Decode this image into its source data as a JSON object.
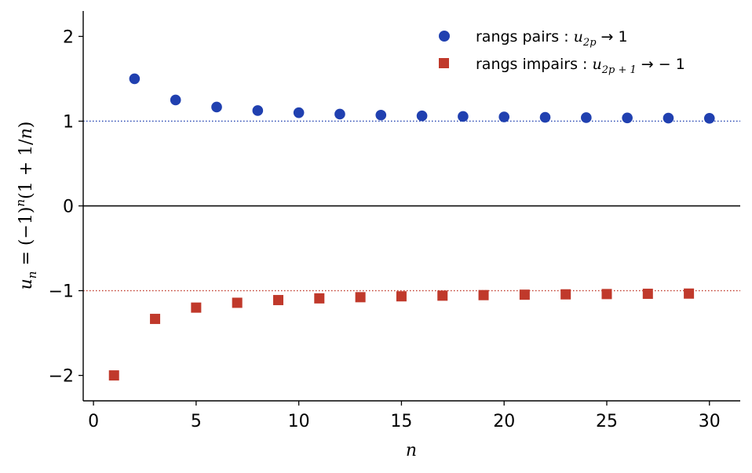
{
  "chart_data": {
    "type": "scatter",
    "title": "",
    "xlabel": "n",
    "ylabel": "u_n = (−1)^n(1 + 1/n)",
    "xlim": [
      -0.5,
      31.5
    ],
    "ylim": [
      -2.3,
      2.3
    ],
    "xticks": [
      0,
      5,
      10,
      15,
      20,
      25,
      30
    ],
    "xtick_labels": [
      "0",
      "5",
      "10",
      "15",
      "20",
      "25",
      "30"
    ],
    "yticks": [
      -2,
      -1,
      0,
      1,
      2
    ],
    "ytick_labels": [
      "−2",
      "−1",
      "0",
      "1",
      "2"
    ],
    "grid": false,
    "legend_position": "top-right",
    "series": [
      {
        "name": "rangs pairs : u_{2p} → 1",
        "marker": "circle",
        "color": "#2040b0",
        "x": [
          2,
          4,
          6,
          8,
          10,
          12,
          14,
          16,
          18,
          20,
          22,
          24,
          26,
          28,
          30
        ],
        "y": [
          1.5,
          1.25,
          1.1667,
          1.125,
          1.1,
          1.0833,
          1.0714,
          1.0625,
          1.0556,
          1.05,
          1.0455,
          1.0417,
          1.0385,
          1.0357,
          1.0333
        ]
      },
      {
        "name": "rangs impairs : u_{2p+1} → −1",
        "marker": "square",
        "color": "#c0392b",
        "x": [
          1,
          3,
          5,
          7,
          9,
          11,
          13,
          15,
          17,
          19,
          21,
          23,
          25,
          27,
          29
        ],
        "y": [
          -2,
          -1.3333,
          -1.2,
          -1.1429,
          -1.1111,
          -1.0909,
          -1.0769,
          -1.0667,
          -1.0588,
          -1.0526,
          -1.0476,
          -1.0435,
          -1.04,
          -1.037,
          -1.0345
        ]
      }
    ],
    "reference_lines": [
      {
        "y": 1,
        "style": "dotted",
        "color": "#2040b0"
      },
      {
        "y": -1,
        "style": "dotted",
        "color": "#c0392b"
      },
      {
        "y": 0,
        "style": "solid",
        "color": "#000000"
      }
    ],
    "legend": {
      "even_label": "rangs pairs : ",
      "even_math_var": "u",
      "even_math_sub": "2p",
      "even_math_rest": " → 1",
      "odd_label": "rangs impairs : ",
      "odd_math_var": "u",
      "odd_math_sub": "2p + 1",
      "odd_math_rest": " → − 1"
    },
    "ylabel_parts": {
      "var": "u",
      "sub": "n",
      "eq": " = (−1)",
      "sup": "n",
      "rest": "(1 + 1/",
      "n": "n",
      "close": ")"
    }
  }
}
